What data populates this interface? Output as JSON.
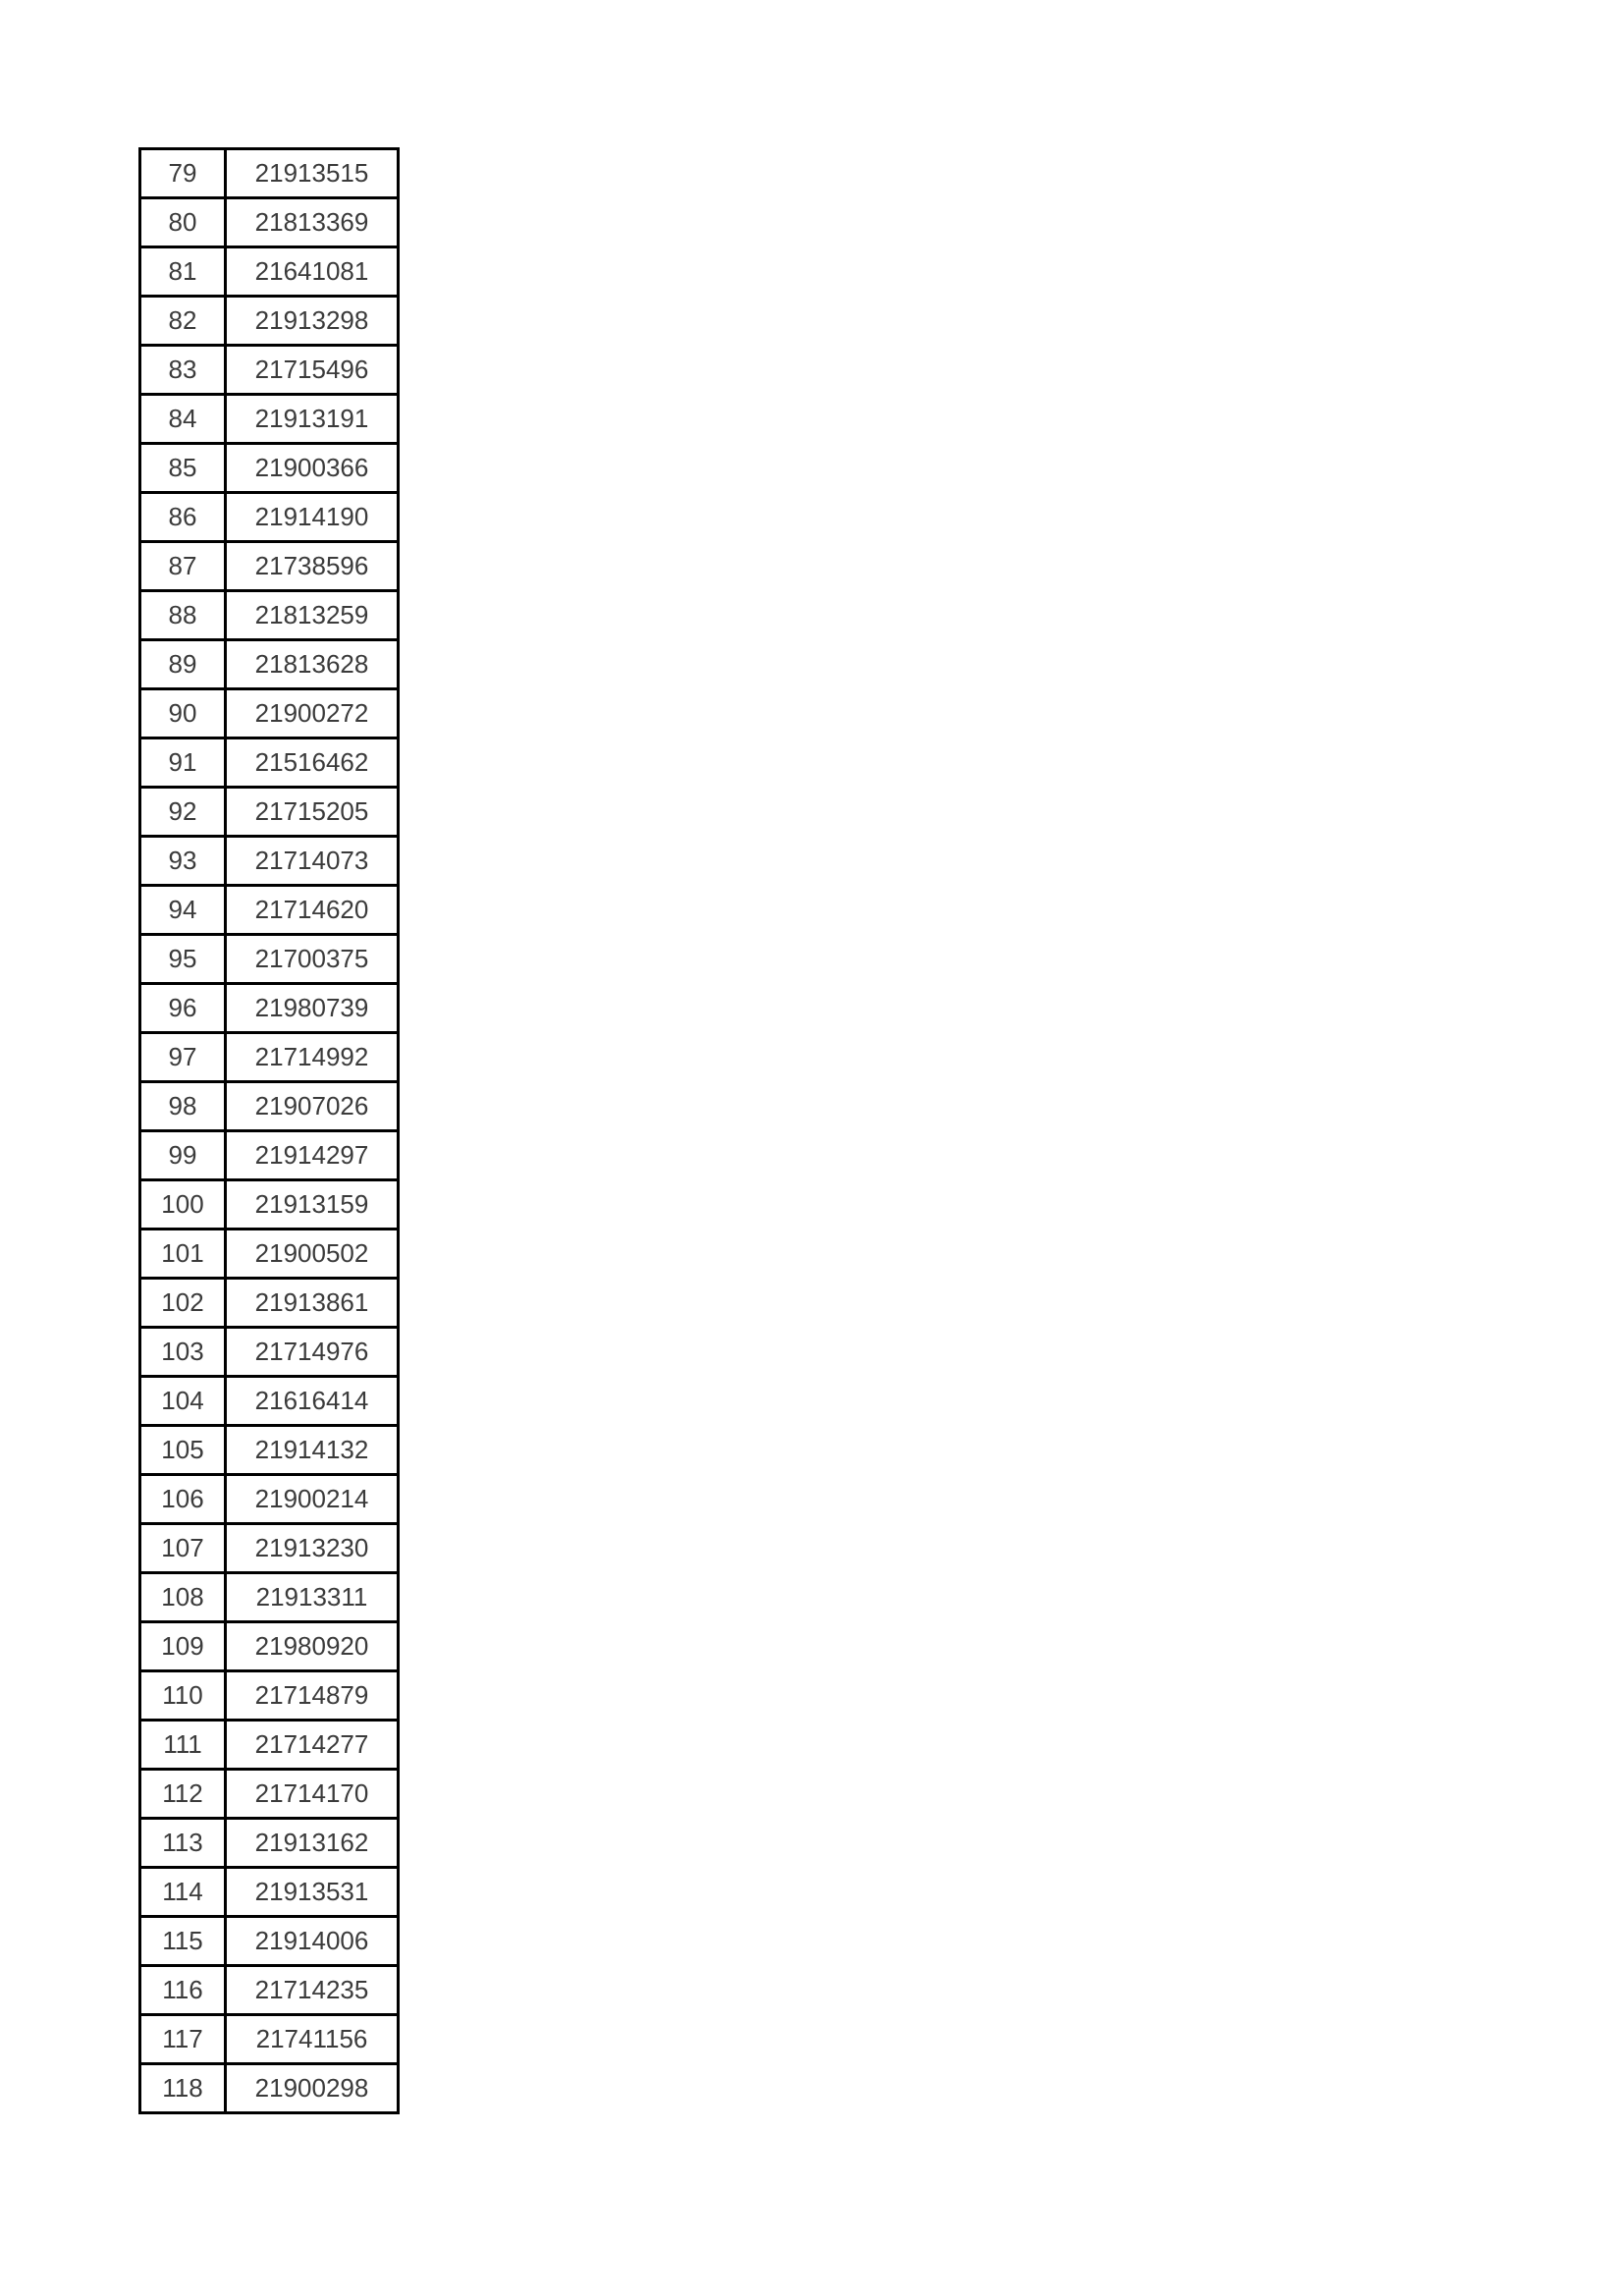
{
  "colors": {
    "page_background": "#ffffff",
    "table_border": "#000000",
    "table_text": "#3b3b3b"
  },
  "table": {
    "columns": [
      "row_number",
      "id_number"
    ],
    "rows": [
      {
        "no": "79",
        "value": "21913515"
      },
      {
        "no": "80",
        "value": "21813369"
      },
      {
        "no": "81",
        "value": "21641081"
      },
      {
        "no": "82",
        "value": "21913298"
      },
      {
        "no": "83",
        "value": "21715496"
      },
      {
        "no": "84",
        "value": "21913191"
      },
      {
        "no": "85",
        "value": "21900366"
      },
      {
        "no": "86",
        "value": "21914190"
      },
      {
        "no": "87",
        "value": "21738596"
      },
      {
        "no": "88",
        "value": "21813259"
      },
      {
        "no": "89",
        "value": "21813628"
      },
      {
        "no": "90",
        "value": "21900272"
      },
      {
        "no": "91",
        "value": "21516462"
      },
      {
        "no": "92",
        "value": "21715205"
      },
      {
        "no": "93",
        "value": "21714073"
      },
      {
        "no": "94",
        "value": "21714620"
      },
      {
        "no": "95",
        "value": "21700375"
      },
      {
        "no": "96",
        "value": "21980739"
      },
      {
        "no": "97",
        "value": "21714992"
      },
      {
        "no": "98",
        "value": "21907026"
      },
      {
        "no": "99",
        "value": "21914297"
      },
      {
        "no": "100",
        "value": "21913159"
      },
      {
        "no": "101",
        "value": "21900502"
      },
      {
        "no": "102",
        "value": "21913861"
      },
      {
        "no": "103",
        "value": "21714976"
      },
      {
        "no": "104",
        "value": "21616414"
      },
      {
        "no": "105",
        "value": "21914132"
      },
      {
        "no": "106",
        "value": "21900214"
      },
      {
        "no": "107",
        "value": "21913230"
      },
      {
        "no": "108",
        "value": "21913311"
      },
      {
        "no": "109",
        "value": "21980920"
      },
      {
        "no": "110",
        "value": "21714879"
      },
      {
        "no": "111",
        "value": "21714277"
      },
      {
        "no": "112",
        "value": "21714170"
      },
      {
        "no": "113",
        "value": "21913162"
      },
      {
        "no": "114",
        "value": "21913531"
      },
      {
        "no": "115",
        "value": "21914006"
      },
      {
        "no": "116",
        "value": "21714235"
      },
      {
        "no": "117",
        "value": "21741156"
      },
      {
        "no": "118",
        "value": "21900298"
      }
    ]
  }
}
